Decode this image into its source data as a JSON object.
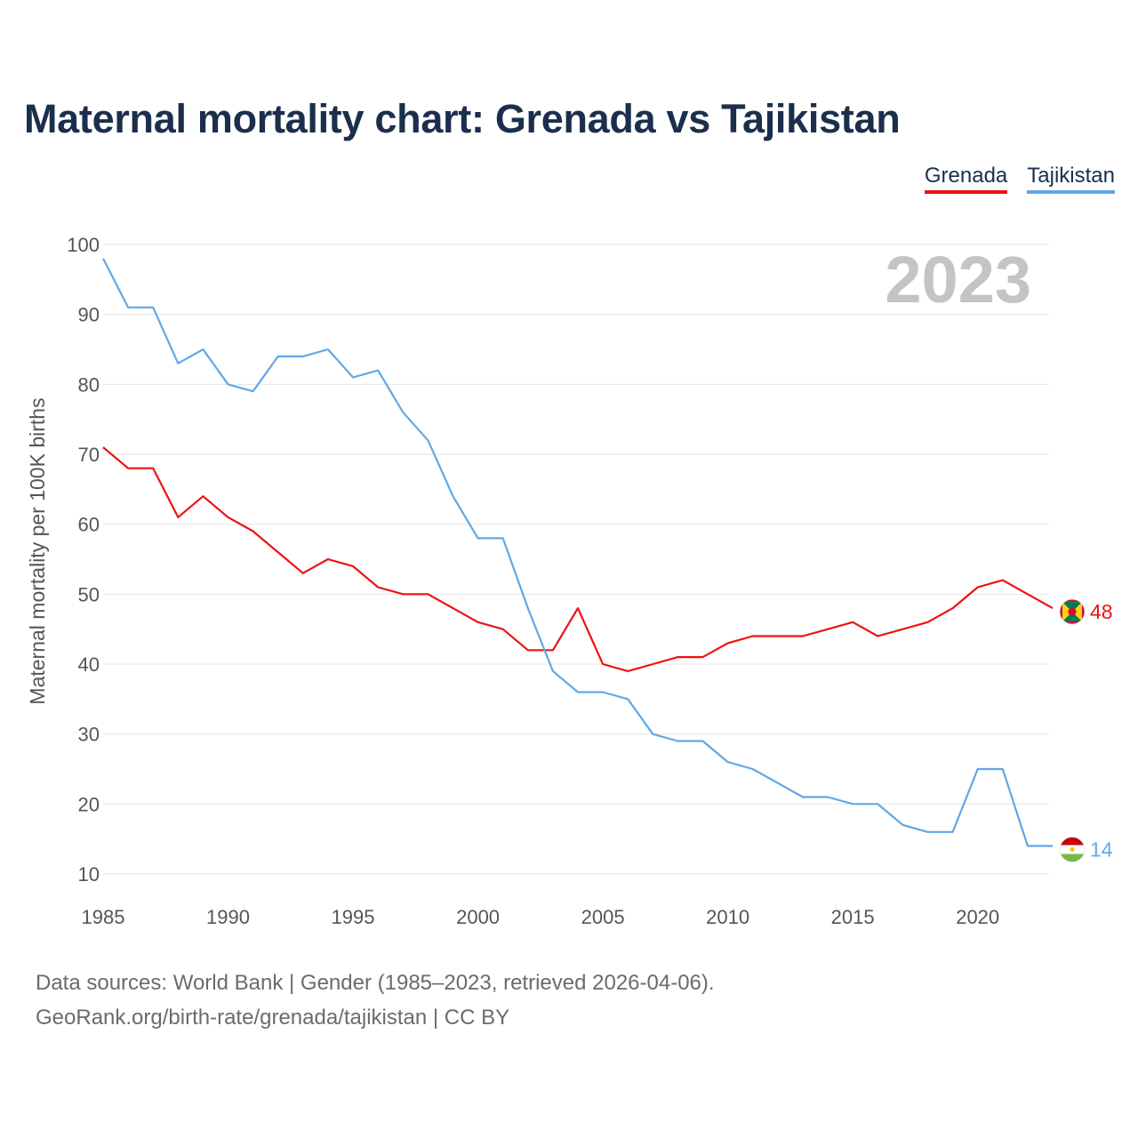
{
  "title": "Maternal mortality chart: Grenada vs Tajikistan",
  "legend": [
    {
      "name": "Grenada",
      "color": "#ee1111"
    },
    {
      "name": "Tajikistan",
      "color": "#60a8e6"
    }
  ],
  "footer": {
    "line1": "Data sources: World Bank | Gender (1985–2023, retrieved 2026-04-06).",
    "line2": "GeoRank.org/birth-rate/grenada/tajikistan | CC BY"
  },
  "chart_data": {
    "type": "line",
    "title": "Maternal mortality chart: Grenada vs Tajikistan",
    "xlabel": "",
    "ylabel": "Maternal mortality per 100K births",
    "year_label": "2023",
    "xlim": [
      1985,
      2023
    ],
    "ylim": [
      10,
      100
    ],
    "x_ticks": [
      1985,
      1990,
      1995,
      2000,
      2005,
      2010,
      2015,
      2020
    ],
    "y_ticks": [
      10,
      20,
      30,
      40,
      50,
      60,
      70,
      80,
      90,
      100
    ],
    "grid": true,
    "legend_position": "top-right",
    "x": [
      1985,
      1986,
      1987,
      1988,
      1989,
      1990,
      1991,
      1992,
      1993,
      1994,
      1995,
      1996,
      1997,
      1998,
      1999,
      2000,
      2001,
      2002,
      2003,
      2004,
      2005,
      2006,
      2007,
      2008,
      2009,
      2010,
      2011,
      2012,
      2013,
      2014,
      2015,
      2016,
      2017,
      2018,
      2019,
      2020,
      2021,
      2022,
      2023
    ],
    "series": [
      {
        "name": "Grenada",
        "color": "#ee1111",
        "end_label": "48",
        "values": [
          71,
          68,
          68,
          61,
          64,
          61,
          59,
          56,
          53,
          55,
          54,
          51,
          50,
          50,
          48,
          46,
          45,
          42,
          42,
          48,
          40,
          39,
          40,
          41,
          41,
          43,
          44,
          44,
          44,
          45,
          46,
          44,
          45,
          46,
          48,
          51,
          52,
          50,
          48
        ]
      },
      {
        "name": "Tajikistan",
        "color": "#60a8e6",
        "end_label": "14",
        "values": [
          98,
          91,
          91,
          83,
          85,
          80,
          79,
          84,
          84,
          85,
          81,
          82,
          76,
          72,
          64,
          58,
          58,
          48,
          39,
          36,
          36,
          35,
          30,
          29,
          29,
          26,
          25,
          23,
          21,
          21,
          20,
          20,
          17,
          16,
          16,
          25,
          25,
          14,
          14
        ]
      }
    ]
  }
}
